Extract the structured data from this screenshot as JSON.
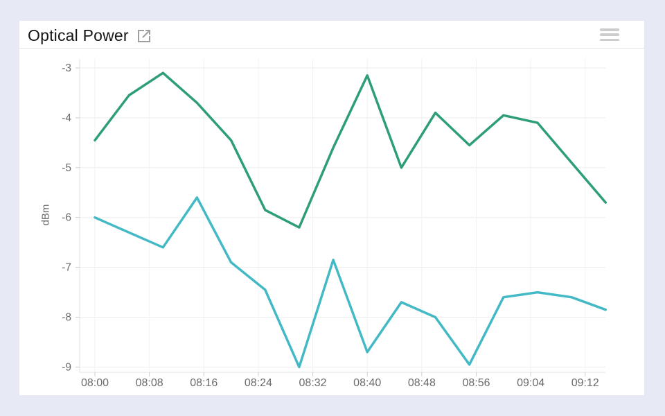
{
  "header": {
    "title": "Optical Power",
    "expand_icon": "external-link",
    "menu_icon": "hamburger-menu"
  },
  "colors": {
    "page_bg": "#e7eaf4",
    "card_bg": "#ffffff",
    "title_text": "#151515",
    "axis_text": "#6a6a6a",
    "gridline": "#ededed",
    "axis_line": "#e0e0e0",
    "tick_mark": "#cccccc",
    "series_green": "#2e9e77",
    "series_cyan": "#43b9c6",
    "icon_gray": "#9e9e9e"
  },
  "chart_data": {
    "type": "line",
    "title": "Optical Power",
    "xlabel": "",
    "ylabel": "dBm",
    "x": [
      "08:00",
      "08:05",
      "08:10",
      "08:15",
      "08:20",
      "08:25",
      "08:30",
      "08:35",
      "08:40",
      "08:45",
      "08:50",
      "08:55",
      "09:00",
      "09:05",
      "09:10",
      "09:15"
    ],
    "series": [
      {
        "color_name": "green",
        "color": "#2e9e77",
        "values": [
          -4.45,
          -3.55,
          -3.1,
          -3.7,
          -4.45,
          -5.85,
          -6.2,
          -4.6,
          -3.15,
          -5.0,
          -3.9,
          -4.55,
          -3.95,
          -4.1,
          -4.9,
          -5.7
        ]
      },
      {
        "color_name": "cyan",
        "color": "#43b9c6",
        "values": [
          -6.0,
          -6.3,
          -6.6,
          -5.6,
          -6.9,
          -7.45,
          -9.0,
          -6.85,
          -8.7,
          -7.7,
          -8.0,
          -8.95,
          -7.6,
          -7.5,
          -7.6,
          -7.85
        ]
      }
    ],
    "x_tick_labels": [
      "08:00",
      "08:08",
      "08:16",
      "08:24",
      "08:32",
      "08:40",
      "08:48",
      "08:56",
      "09:04",
      "09:12"
    ],
    "y_ticks": [
      -3,
      -4,
      -5,
      -6,
      -7,
      -8,
      -9
    ],
    "ylim": [
      -9.1,
      -2.8
    ],
    "grid": true,
    "legend": "none"
  }
}
